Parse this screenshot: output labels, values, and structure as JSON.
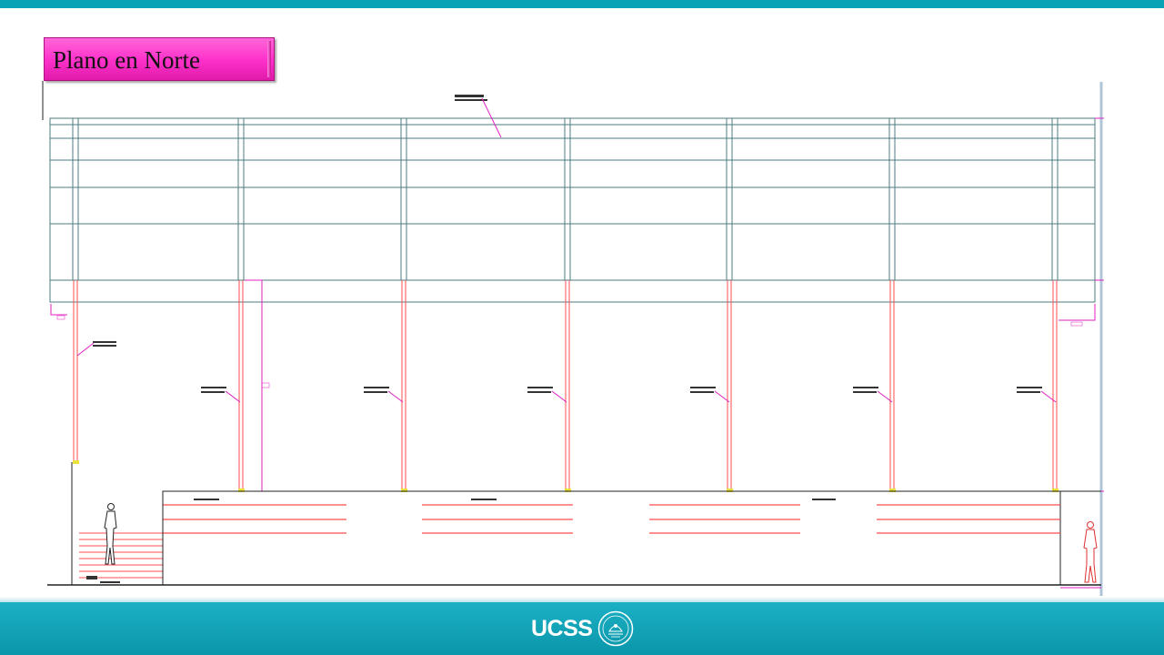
{
  "slide": {
    "title": "Plano en Norte"
  },
  "brand": {
    "logo_text": "UCSS",
    "seal_icon": "university-seal-icon",
    "accent_color": "#0aa3b5",
    "title_color": "#ff33cc"
  },
  "elevation": {
    "structure_color": "#4f7c80",
    "column_color": "#ff4d4d",
    "annotation_color": "#e020c0",
    "column_count": 7,
    "bench_groups": 4
  }
}
